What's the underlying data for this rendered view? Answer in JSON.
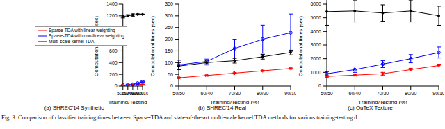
{
  "chart_data": [
    {
      "type": "line",
      "title": "(a) SHREC'14 Synthetic",
      "x_label": "Training/Testing (%)",
      "y_label": "Computational times (sec)",
      "categories": [
        "50/50",
        "60/40",
        "70/30",
        "80/20",
        "90/10"
      ],
      "ylim": [
        0,
        1400
      ],
      "yticks": [
        0,
        200,
        400,
        600,
        800,
        1000,
        1200,
        1400
      ],
      "legend": "upper left",
      "series": [
        {
          "name": "Sparse-TDA with linear weighting",
          "color": "#ff0000",
          "marker": "asterisk",
          "values": [
            10,
            15,
            20,
            25,
            30
          ],
          "errors": [
            2,
            2,
            3,
            3,
            3
          ]
        },
        {
          "name": "Sparse-TDA with non-linear weighting",
          "color": "#0000ff",
          "marker": "circle",
          "values": [
            15,
            22,
            30,
            50,
            75
          ],
          "errors": [
            3,
            4,
            5,
            6,
            8
          ]
        },
        {
          "name": "Multi-scale kernel TDA",
          "color": "#000000",
          "marker": "point",
          "values": [
            1190,
            1200,
            1215,
            1225,
            1225
          ],
          "errors": [
            25,
            20,
            20,
            10,
            5
          ]
        }
      ]
    },
    {
      "type": "line",
      "title": "(b) SHREC'14 Real",
      "x_label": "Training/Testing (%)",
      "y_label": "Computational times (sec)",
      "categories": [
        "50/50",
        "60/40",
        "70/30",
        "80/20",
        "90/10"
      ],
      "ylim": [
        0,
        350
      ],
      "yticks": [
        0,
        50,
        100,
        150,
        200,
        250,
        300,
        350
      ],
      "series": [
        {
          "name": "Sparse-TDA with linear weighting",
          "color": "#ff0000",
          "marker": "asterisk",
          "values": [
            35,
            45,
            55,
            65,
            75
          ],
          "errors": [
            2,
            2,
            2,
            2,
            2
          ]
        },
        {
          "name": "Sparse-TDA with non-linear weighting",
          "color": "#0000ff",
          "marker": "circle",
          "values": [
            90,
            105,
            160,
            200,
            228
          ],
          "errors": [
            20,
            10,
            40,
            60,
            80
          ]
        },
        {
          "name": "Multi-scale kernel TDA",
          "color": "#000000",
          "marker": "point",
          "values": [
            85,
            100,
            108,
            125,
            143
          ],
          "errors": [
            15,
            10,
            10,
            10,
            10
          ]
        }
      ]
    },
    {
      "type": "line",
      "title": "(c) OuTeX Texture",
      "x_label": "Training/Testing (%)",
      "y_label": "Computational times (sec)",
      "categories": [
        "50/50",
        "60/40",
        "70/30",
        "80/20",
        "90/10"
      ],
      "ylim": [
        0,
        6000
      ],
      "yticks": [
        0,
        1000,
        2000,
        3000,
        4000,
        5000,
        6000
      ],
      "series": [
        {
          "name": "Sparse-TDA with linear weighting",
          "color": "#ff0000",
          "marker": "asterisk",
          "values": [
            700,
            800,
            900,
            1200,
            1500
          ],
          "errors": [
            50,
            50,
            100,
            100,
            100
          ]
        },
        {
          "name": "Sparse-TDA with non-linear weighting",
          "color": "#0000ff",
          "marker": "circle",
          "values": [
            900,
            1200,
            1600,
            2000,
            2450
          ],
          "errors": [
            150,
            200,
            250,
            300,
            400
          ]
        },
        {
          "name": "Multi-scale kernel TDA",
          "color": "#000000",
          "marker": "point",
          "values": [
            5450,
            5500,
            5350,
            5500,
            5150
          ],
          "errors": [
            1000,
            800,
            600,
            800,
            700
          ]
        }
      ]
    }
  ],
  "caption": "Fig. 3. Comparison of classifier training times between Sparse-TDA and state-of-the-art multi-scale kernel TDA methods for various training-testing d"
}
